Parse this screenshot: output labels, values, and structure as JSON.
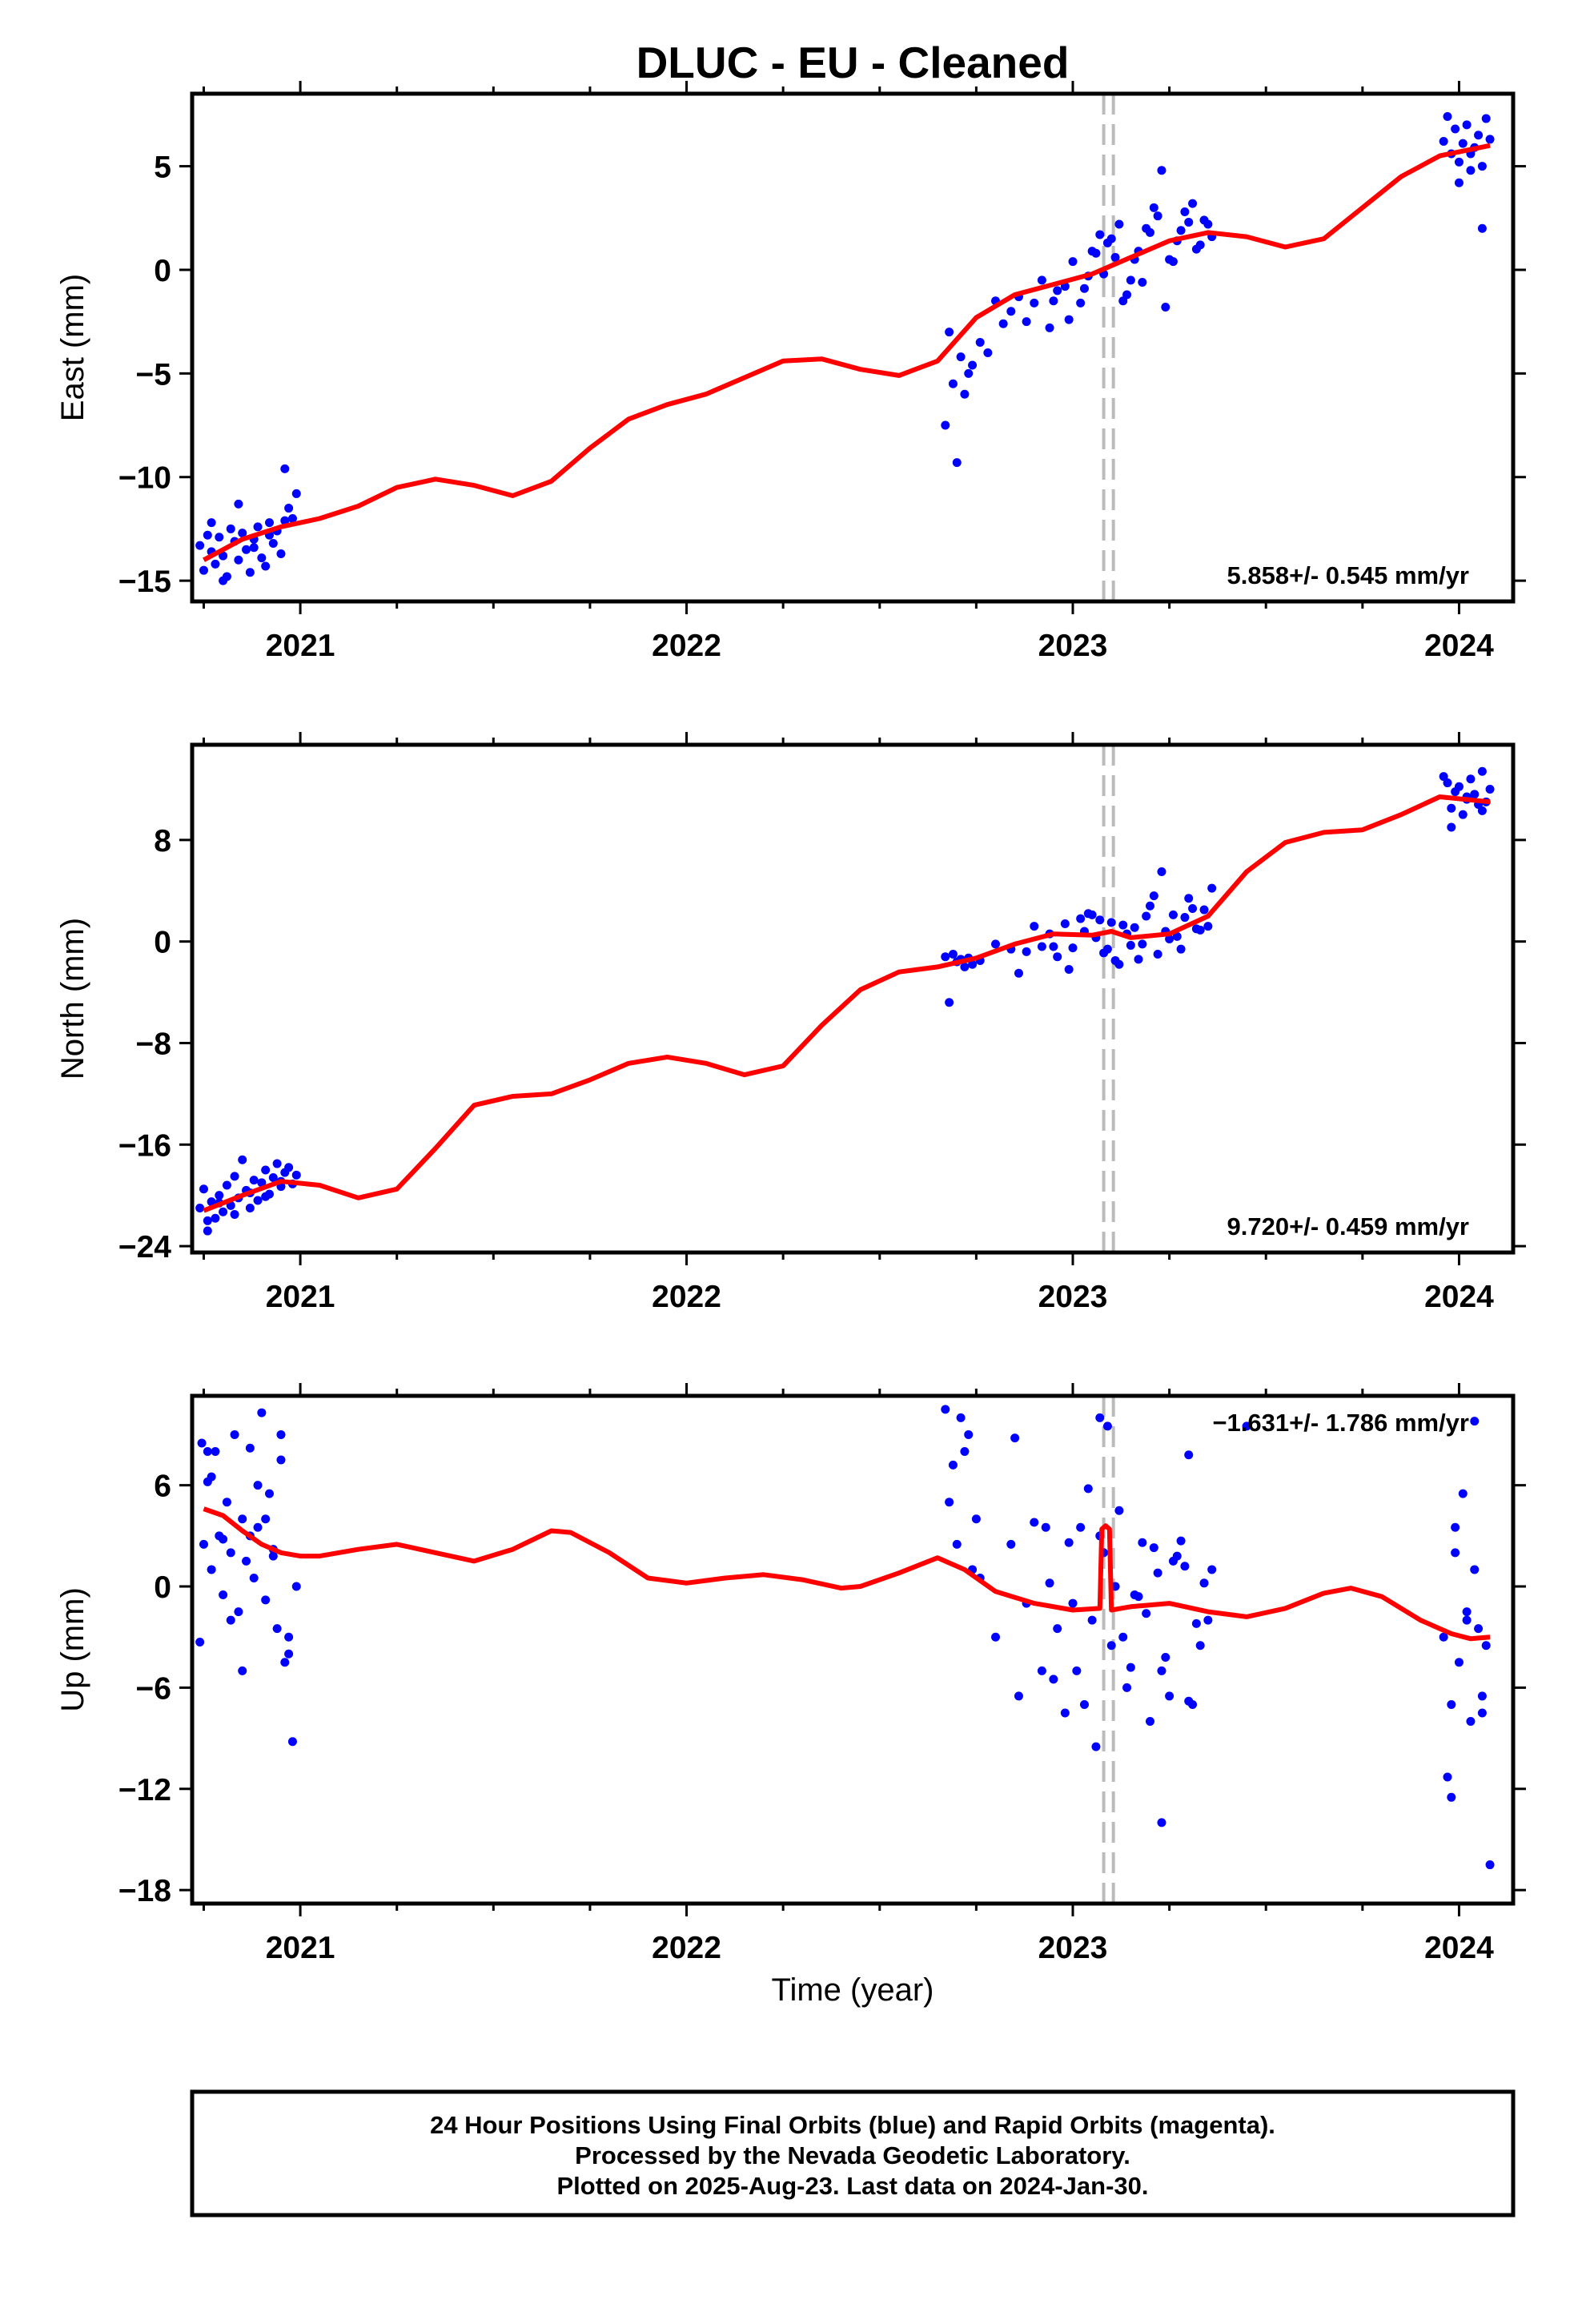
{
  "title": "DLUC  - EU - Cleaned",
  "xlabel": "Time (year)",
  "footer": [
    "24 Hour Positions Using Final Orbits (blue) and Rapid Orbits (magenta).",
    "Processed by the Nevada Geodetic Laboratory.",
    "Plotted on 2025-Aug-23. Last data on 2024-Jan-30."
  ],
  "colors": {
    "data": "#0000ff",
    "model": "#ff0000",
    "break": "#bbbbbb",
    "frame": "#000000"
  },
  "chart_data": [
    {
      "type": "scatter",
      "panel": "east",
      "ylabel": "East (mm)",
      "rate_label": "5.858+/- 0.545 mm/yr",
      "xlim": [
        2020.72,
        2024.14
      ],
      "ylim": [
        -16,
        8.5
      ],
      "xticks": [
        2021,
        2022,
        2023,
        2024
      ],
      "yticks": [
        -15,
        -10,
        -5,
        0,
        5
      ],
      "breaks": [
        2023.08,
        2023.105
      ],
      "series": [
        {
          "type": "line",
          "x": [
            2020.75,
            2020.85,
            2020.95,
            2021.05,
            2021.15,
            2021.25,
            2021.35,
            2021.45,
            2021.55,
            2021.65,
            2021.75,
            2021.85,
            2021.95,
            2022.05,
            2022.15,
            2022.25,
            2022.35,
            2022.45,
            2022.55,
            2022.65,
            2022.75,
            2022.85,
            2022.95,
            2023.05,
            2023.15,
            2023.25,
            2023.35,
            2023.45,
            2023.55,
            2023.65,
            2023.75,
            2023.85,
            2023.95,
            2024.08
          ],
          "y": [
            -14.0,
            -13.0,
            -12.4,
            -12.0,
            -11.4,
            -10.5,
            -10.1,
            -10.4,
            -10.9,
            -10.2,
            -8.6,
            -7.2,
            -6.5,
            -6.0,
            -5.2,
            -4.4,
            -4.3,
            -4.8,
            -5.1,
            -4.4,
            -2.3,
            -1.2,
            -0.7,
            -0.2,
            0.6,
            1.4,
            1.8,
            1.6,
            1.1,
            1.5,
            3.0,
            4.5,
            5.5,
            6.0
          ]
        },
        {
          "type": "points",
          "x": [
            2020.74,
            2020.75,
            2020.76,
            2020.77,
            2020.78,
            2020.79,
            2020.8,
            2020.81,
            2020.82,
            2020.83,
            2020.84,
            2020.85,
            2020.86,
            2020.87,
            2020.88,
            2020.89,
            2020.9,
            2020.91,
            2020.92,
            2020.93,
            2020.94,
            2020.95,
            2020.96,
            2020.97,
            2020.98,
            2020.99,
            2020.77,
            2020.8,
            2020.84,
            2020.88,
            2020.92,
            2020.96,
            2022.67,
            2022.68,
            2022.69,
            2022.7,
            2022.71,
            2022.72,
            2022.73,
            2022.74,
            2022.76,
            2022.78,
            2022.8,
            2022.82,
            2022.84,
            2022.86,
            2022.88,
            2022.9,
            2022.92,
            2022.94,
            2022.96,
            2022.98,
            2023.0,
            2023.02,
            2023.04,
            2023.06,
            2023.08,
            2023.1,
            2023.12,
            2023.14,
            2023.16,
            2023.18,
            2023.2,
            2023.22,
            2023.24,
            2023.26,
            2023.28,
            2023.3,
            2023.32,
            2023.34,
            2023.36,
            2023.09,
            2023.13,
            2023.17,
            2023.21,
            2023.25,
            2023.29,
            2023.33,
            2023.03,
            2023.07,
            2023.11,
            2023.15,
            2023.19,
            2023.23,
            2023.27,
            2023.31,
            2023.35,
            2022.95,
            2022.99,
            2023.05,
            2023.96,
            2023.97,
            2023.98,
            2023.99,
            2024.0,
            2024.01,
            2024.02,
            2024.03,
            2024.04,
            2024.05,
            2024.06,
            2024.07,
            2024.08,
            2024.0,
            2024.03,
            2024.06
          ],
          "y": [
            -13.3,
            -14.5,
            -12.8,
            -13.6,
            -14.2,
            -12.9,
            -13.8,
            -14.8,
            -12.5,
            -13.1,
            -14.0,
            -12.7,
            -13.5,
            -14.6,
            -13.0,
            -12.4,
            -13.9,
            -14.3,
            -12.8,
            -13.2,
            -12.6,
            -13.7,
            -12.1,
            -11.5,
            -12.0,
            -10.8,
            -12.2,
            -15.0,
            -11.3,
            -13.4,
            -12.2,
            -9.6,
            -7.5,
            -3.0,
            -5.5,
            -9.3,
            -4.2,
            -6.0,
            -5.0,
            -4.6,
            -3.5,
            -4.0,
            -1.5,
            -2.6,
            -2.0,
            -1.3,
            -2.5,
            -1.6,
            -0.5,
            -2.8,
            -1.0,
            -0.8,
            0.4,
            -1.6,
            -0.3,
            0.8,
            -0.2,
            1.5,
            2.2,
            -1.2,
            0.5,
            -0.6,
            1.8,
            2.6,
            -1.8,
            0.4,
            1.9,
            2.3,
            1.0,
            2.4,
            1.6,
            1.3,
            -1.5,
            0.9,
            3.0,
            0.5,
            2.8,
            1.2,
            -0.9,
            1.7,
            0.6,
            -0.5,
            2.0,
            4.8,
            1.4,
            3.2,
            2.2,
            -1.5,
            -2.4,
            0.9,
            6.2,
            7.4,
            5.6,
            6.8,
            5.2,
            6.1,
            7.0,
            4.8,
            5.9,
            6.5,
            5.0,
            7.3,
            6.3,
            4.2,
            5.6,
            2.0
          ]
        }
      ]
    },
    {
      "type": "scatter",
      "panel": "north",
      "ylabel": "North (mm)",
      "rate_label": "9.720+/- 0.459 mm/yr",
      "xlim": [
        2020.72,
        2024.14
      ],
      "ylim": [
        -24.5,
        15.5
      ],
      "xticks": [
        2021,
        2022,
        2023,
        2024
      ],
      "yticks": [
        -24,
        -16,
        -8,
        0,
        8
      ],
      "breaks": [
        2023.08,
        2023.105
      ],
      "series": [
        {
          "type": "line",
          "x": [
            2020.75,
            2020.85,
            2020.95,
            2021.05,
            2021.15,
            2021.25,
            2021.35,
            2021.45,
            2021.55,
            2021.65,
            2021.75,
            2021.85,
            2021.95,
            2022.05,
            2022.15,
            2022.25,
            2022.35,
            2022.45,
            2022.55,
            2022.65,
            2022.75,
            2022.85,
            2022.95,
            2023.05,
            2023.1,
            2023.15,
            2023.25,
            2023.35,
            2023.45,
            2023.55,
            2023.65,
            2023.75,
            2023.85,
            2023.95,
            2024.08
          ],
          "y": [
            -21.2,
            -20.0,
            -18.9,
            -19.2,
            -20.2,
            -19.5,
            -16.3,
            -12.9,
            -12.2,
            -12.0,
            -10.9,
            -9.6,
            -9.1,
            -9.6,
            -10.5,
            -9.8,
            -6.6,
            -3.8,
            -2.4,
            -2.0,
            -1.3,
            -0.2,
            0.6,
            0.5,
            0.8,
            0.3,
            0.6,
            2.0,
            5.5,
            7.8,
            8.6,
            8.8,
            10.0,
            11.4,
            11.0
          ]
        },
        {
          "type": "points",
          "x": [
            2020.74,
            2020.75,
            2020.76,
            2020.77,
            2020.78,
            2020.79,
            2020.8,
            2020.81,
            2020.82,
            2020.83,
            2020.84,
            2020.85,
            2020.86,
            2020.87,
            2020.88,
            2020.89,
            2020.9,
            2020.91,
            2020.92,
            2020.93,
            2020.94,
            2020.95,
            2020.96,
            2020.97,
            2020.98,
            2020.99,
            2020.76,
            2020.79,
            2020.83,
            2020.87,
            2020.91,
            2020.95,
            2022.67,
            2022.68,
            2022.69,
            2022.7,
            2022.71,
            2022.72,
            2022.73,
            2022.74,
            2022.76,
            2022.8,
            2022.84,
            2022.86,
            2022.88,
            2022.9,
            2022.92,
            2022.94,
            2022.96,
            2022.98,
            2023.0,
            2023.02,
            2023.04,
            2023.06,
            2023.08,
            2023.1,
            2023.12,
            2023.14,
            2023.16,
            2023.18,
            2023.2,
            2023.22,
            2023.24,
            2023.26,
            2023.28,
            2023.3,
            2023.32,
            2023.34,
            2023.36,
            2023.09,
            2023.13,
            2023.17,
            2023.21,
            2023.25,
            2023.29,
            2023.33,
            2023.03,
            2023.07,
            2023.11,
            2023.15,
            2023.19,
            2023.23,
            2023.27,
            2023.31,
            2023.35,
            2022.95,
            2022.99,
            2023.05,
            2023.96,
            2023.97,
            2023.98,
            2023.99,
            2024.0,
            2024.01,
            2024.02,
            2024.03,
            2024.04,
            2024.05,
            2024.06,
            2024.07,
            2024.08,
            2023.98,
            2024.02,
            2024.06
          ],
          "y": [
            -21.0,
            -19.5,
            -22.0,
            -20.5,
            -21.8,
            -20.0,
            -21.3,
            -19.2,
            -20.8,
            -18.5,
            -20.2,
            -17.2,
            -19.6,
            -21.0,
            -18.8,
            -20.4,
            -19.0,
            -18.0,
            -19.9,
            -18.6,
            -17.5,
            -19.3,
            -18.2,
            -17.8,
            -19.1,
            -18.4,
            -22.8,
            -20.6,
            -21.5,
            -19.8,
            -20.1,
            -18.9,
            -1.2,
            -4.8,
            -1.0,
            -1.6,
            -1.4,
            -2.0,
            -1.3,
            -1.8,
            -1.5,
            -0.2,
            -0.6,
            -2.5,
            -0.8,
            1.2,
            -0.4,
            0.6,
            -1.2,
            1.4,
            -0.5,
            1.8,
            2.2,
            0.3,
            -0.9,
            1.5,
            -1.8,
            0.6,
            1.1,
            -0.2,
            2.8,
            -1.0,
            0.8,
            2.1,
            -0.6,
            3.4,
            1.0,
            2.5,
            4.2,
            -0.6,
            1.3,
            -1.4,
            3.6,
            0.2,
            1.9,
            0.9,
            0.8,
            1.7,
            -1.5,
            -0.3,
            2.0,
            5.5,
            0.4,
            2.6,
            1.2,
            -0.4,
            -2.2,
            2.1,
            13.0,
            12.5,
            10.5,
            11.8,
            12.2,
            10.0,
            11.2,
            12.8,
            11.6,
            10.8,
            13.4,
            11.0,
            12.0,
            9.0,
            11.4,
            10.3
          ]
        }
      ]
    },
    {
      "type": "scatter",
      "panel": "up",
      "ylabel": "Up (mm)",
      "rate_label": "-1.631+/- 1.786 mm/yr",
      "xlim": [
        2020.72,
        2024.14
      ],
      "ylim": [
        -18.8,
        11.3
      ],
      "xticks": [
        2021,
        2022,
        2023,
        2024
      ],
      "yticks": [
        -18,
        -12,
        -6,
        0,
        6
      ],
      "breaks": [
        2023.08,
        2023.105
      ],
      "series": [
        {
          "type": "line",
          "x": [
            2020.75,
            2020.8,
            2020.85,
            2020.9,
            2020.95,
            2021.0,
            2021.05,
            2021.15,
            2021.25,
            2021.35,
            2021.45,
            2021.55,
            2021.65,
            2021.7,
            2021.8,
            2021.9,
            2022.0,
            2022.1,
            2022.2,
            2022.3,
            2022.4,
            2022.45,
            2022.55,
            2022.65,
            2022.72,
            2022.8,
            2022.9,
            2023.0,
            2023.07,
            2023.075,
            2023.085,
            2023.095,
            2023.1,
            2023.15,
            2023.25,
            2023.35,
            2023.45,
            2023.55,
            2023.65,
            2023.72,
            2023.8,
            2023.9,
            2023.98,
            2024.03,
            2024.08
          ],
          "y": [
            4.6,
            4.2,
            3.3,
            2.5,
            2.0,
            1.8,
            1.8,
            2.2,
            2.5,
            2.0,
            1.5,
            2.2,
            3.3,
            3.2,
            2.0,
            0.5,
            0.2,
            0.5,
            0.7,
            0.4,
            -0.1,
            0.0,
            0.8,
            1.7,
            1.0,
            -0.3,
            -1.0,
            -1.4,
            -1.3,
            3.4,
            3.6,
            3.4,
            -1.4,
            -1.2,
            -1.0,
            -1.5,
            -1.8,
            -1.3,
            -0.4,
            -0.1,
            -0.6,
            -2.0,
            -2.8,
            -3.1,
            -3.0
          ]
        },
        {
          "type": "points",
          "x": [
            2020.74,
            2020.745,
            2020.75,
            2020.76,
            2020.77,
            2020.78,
            2020.79,
            2020.8,
            2020.81,
            2020.82,
            2020.83,
            2020.84,
            2020.85,
            2020.86,
            2020.87,
            2020.88,
            2020.89,
            2020.9,
            2020.91,
            2020.92,
            2020.93,
            2020.94,
            2020.95,
            2020.96,
            2020.97,
            2020.98,
            2020.99,
            2020.77,
            2020.82,
            2020.87,
            2020.91,
            2020.95,
            2020.76,
            2020.8,
            2020.85,
            2020.89,
            2020.93,
            2020.97,
            2022.67,
            2022.68,
            2022.69,
            2022.7,
            2022.71,
            2022.72,
            2022.73,
            2022.74,
            2022.75,
            2022.76,
            2022.8,
            2022.84,
            2022.86,
            2022.88,
            2022.9,
            2022.92,
            2022.94,
            2022.96,
            2022.98,
            2023.0,
            2023.02,
            2023.04,
            2023.06,
            2023.08,
            2023.1,
            2023.12,
            2023.14,
            2023.16,
            2023.18,
            2023.2,
            2023.22,
            2023.24,
            2023.26,
            2023.28,
            2023.3,
            2023.32,
            2023.34,
            2023.36,
            2023.09,
            2023.13,
            2023.17,
            2023.21,
            2023.25,
            2023.29,
            2023.33,
            2023.03,
            2023.07,
            2023.11,
            2023.15,
            2023.19,
            2023.23,
            2023.27,
            2023.31,
            2023.35,
            2022.95,
            2022.99,
            2023.05,
            2022.85,
            2022.93,
            2023.01,
            2023.23,
            2023.3,
            2023.07,
            2023.45,
            2023.96,
            2023.97,
            2023.98,
            2023.99,
            2024.0,
            2024.01,
            2024.02,
            2024.03,
            2024.04,
            2024.05,
            2024.06,
            2024.07,
            2024.08,
            2023.98,
            2024.02,
            2024.06,
            2023.99,
            2024.04
          ],
          "y": [
            -3.3,
            8.5,
            2.5,
            6.2,
            1.0,
            8.0,
            3.0,
            -0.5,
            5.0,
            2.0,
            9.0,
            -1.5,
            4.0,
            1.5,
            8.2,
            0.5,
            3.5,
            10.3,
            -0.8,
            5.5,
            2.2,
            -2.5,
            7.5,
            -4.5,
            -3.0,
            -9.2,
            0.0,
            6.5,
            -2.0,
            3.0,
            4.0,
            9.0,
            8.0,
            2.8,
            -5.0,
            6.0,
            1.8,
            -4.0,
            10.5,
            5.0,
            7.2,
            2.5,
            10.0,
            8.0,
            9.0,
            1.0,
            4.0,
            0.5,
            -3.0,
            2.5,
            -6.5,
            -1.0,
            3.8,
            -5.0,
            0.2,
            -2.5,
            -7.5,
            -1.0,
            3.5,
            5.8,
            -9.5,
            2.0,
            -3.5,
            4.5,
            -6.0,
            -0.5,
            2.6,
            -8.0,
            0.8,
            -4.2,
            1.5,
            2.7,
            -6.8,
            -2.2,
            0.2,
            1.0,
            9.5,
            -3.0,
            -0.6,
            2.3,
            -6.5,
            1.2,
            -3.5,
            -7.0,
            3.0,
            0.0,
            -4.8,
            -1.6,
            -5.0,
            1.8,
            -7.0,
            -2.0,
            -5.5,
            2.6,
            -2.0,
            8.8,
            3.5,
            -5.0,
            -14.0,
            7.8,
            10.0,
            9.5,
            -3.0,
            -11.3,
            -7.0,
            2.0,
            -4.5,
            5.5,
            -1.5,
            -8.0,
            1.0,
            -2.5,
            -7.5,
            -3.5,
            -16.5,
            -12.5,
            -2.0,
            -6.5,
            3.5,
            9.8
          ]
        }
      ]
    }
  ]
}
